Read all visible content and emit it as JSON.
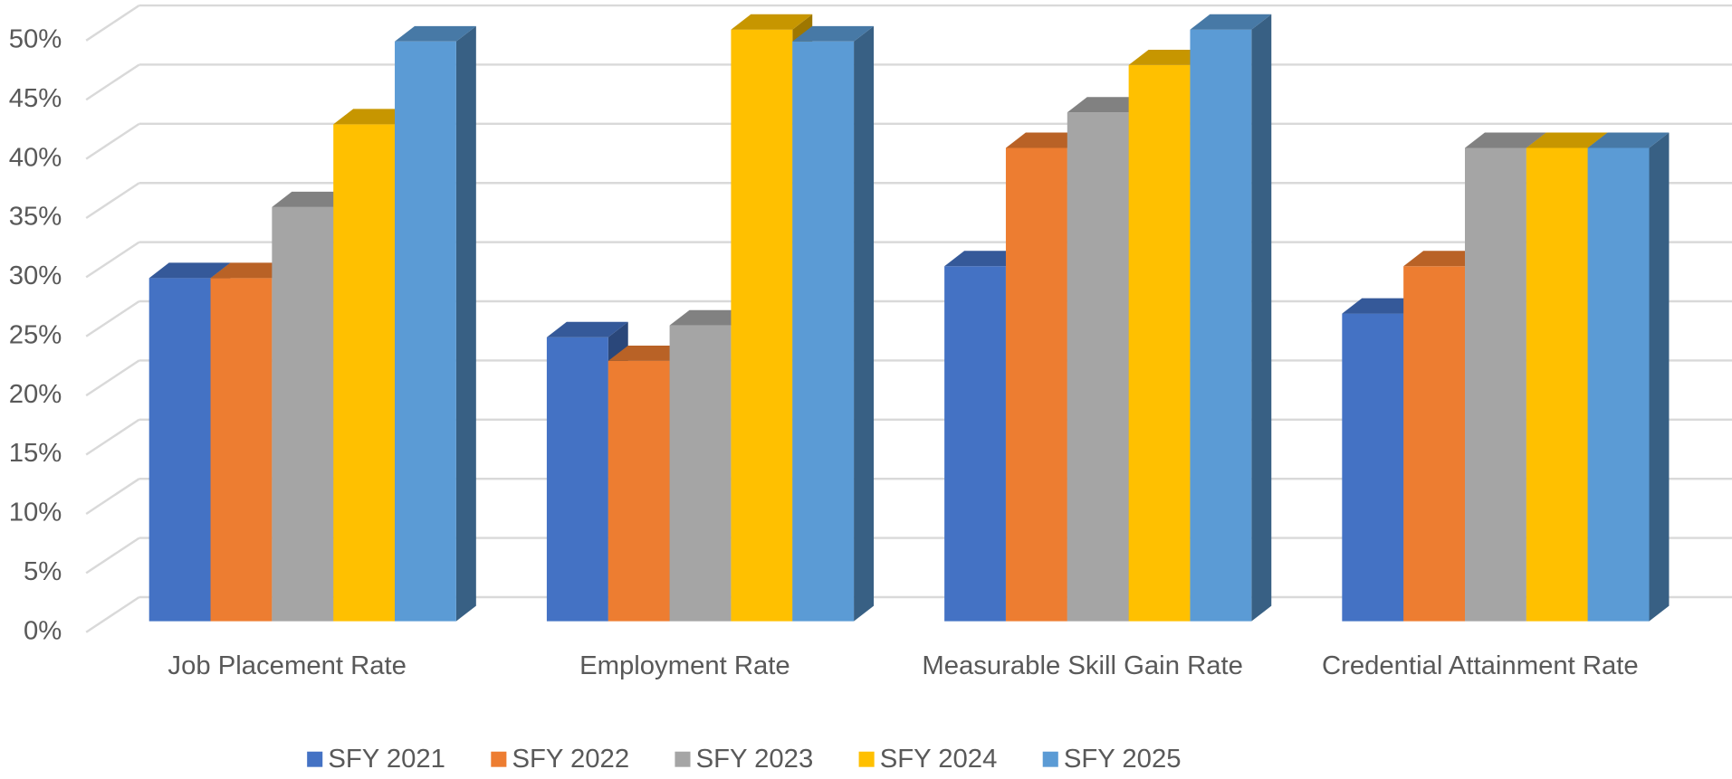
{
  "chart_data": {
    "type": "bar",
    "categories": [
      "Job Placement Rate",
      "Employment Rate",
      "Measurable Skill Gain Rate",
      "Credential Attainment Rate"
    ],
    "series": [
      {
        "name": "SFY 2021",
        "color": "#4472c4",
        "values": [
          29,
          24,
          30,
          26
        ]
      },
      {
        "name": "SFY 2022",
        "color": "#ed7d31",
        "values": [
          29,
          22,
          40,
          30
        ]
      },
      {
        "name": "SFY 2023",
        "color": "#a5a5a5",
        "values": [
          35,
          25,
          43,
          40
        ]
      },
      {
        "name": "SFY 2024",
        "color": "#ffc000",
        "values": [
          42,
          50,
          47,
          40
        ]
      },
      {
        "name": "SFY 2025",
        "color": "#5b9bd5",
        "values": [
          49,
          49,
          50,
          40
        ]
      }
    ],
    "ylim": [
      0,
      50
    ],
    "yticks": [
      {
        "value": 0,
        "label": "0%"
      },
      {
        "value": 5,
        "label": "5%"
      },
      {
        "value": 10,
        "label": "10%"
      },
      {
        "value": 15,
        "label": "15%"
      },
      {
        "value": 20,
        "label": "20%"
      },
      {
        "value": 25,
        "label": "25%"
      },
      {
        "value": 30,
        "label": "30%"
      },
      {
        "value": 35,
        "label": "35%"
      },
      {
        "value": 40,
        "label": "40%"
      },
      {
        "value": 45,
        "label": "45%"
      },
      {
        "value": 50,
        "label": "50%"
      }
    ],
    "grid": true,
    "legend": "bottom"
  }
}
